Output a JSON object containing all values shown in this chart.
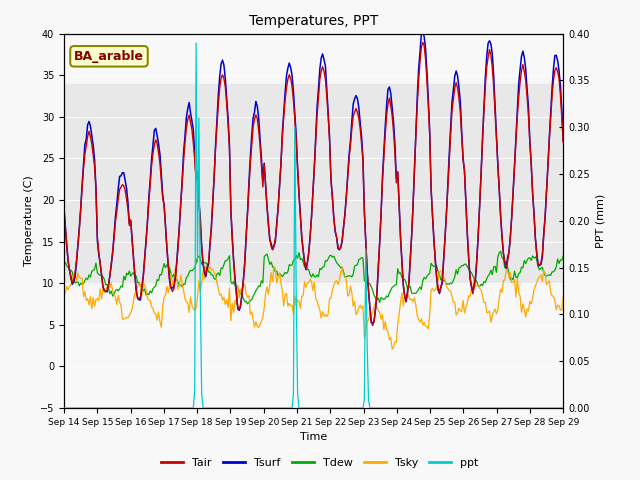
{
  "title": "Temperatures, PPT",
  "xlabel": "Time",
  "ylabel_left": "Temperature (C)",
  "ylabel_right": "PPT (mm)",
  "ylim_left": [
    -5,
    40
  ],
  "ylim_right": [
    0.0,
    0.4
  ],
  "yticks_left": [
    -5,
    0,
    5,
    10,
    15,
    20,
    25,
    30,
    35,
    40
  ],
  "yticks_right": [
    0.0,
    0.05,
    0.1,
    0.15,
    0.2,
    0.25,
    0.3,
    0.35,
    0.4
  ],
  "xtick_labels": [
    "Sep 14",
    "Sep 15",
    "Sep 16",
    "Sep 17",
    "Sep 18",
    "Sep 19",
    "Sep 20",
    "Sep 21",
    "Sep 22",
    "Sep 23",
    "Sep 24",
    "Sep 25",
    "Sep 26",
    "Sep 27",
    "Sep 28",
    "Sep 29"
  ],
  "legend_labels": [
    "Tair",
    "Tsurf",
    "Tdew",
    "Tsky",
    "ppt"
  ],
  "legend_colors": [
    "#cc0000",
    "#0000cc",
    "#00aa00",
    "#ffaa00",
    "#00cccc"
  ],
  "annotation_text": "BA_arable",
  "annotation_fg": "#880000",
  "annotation_bg": "#ffffcc",
  "annotation_border": "#888800",
  "bg_band_ylo": 10,
  "bg_band_yhi": 34,
  "bg_band_color": "#e8e8e8",
  "bg_color": "#f8f8f8",
  "line_colors": {
    "Tair": "#cc0000",
    "Tsurf": "#0000cc",
    "Tdew": "#00aa00",
    "Tsky": "#ffaa00",
    "ppt": "#00cccc"
  },
  "n_days": 15,
  "hpd": 24,
  "daily_max": [
    28,
    22,
    27,
    30,
    35,
    30,
    35,
    36,
    31,
    32,
    39,
    34,
    38,
    36,
    36
  ],
  "daily_min": [
    10,
    9,
    8,
    9,
    11,
    7,
    14,
    12,
    14,
    5,
    8,
    9,
    9,
    12,
    12
  ],
  "tdew_mean": [
    11,
    10,
    10,
    11,
    12,
    9,
    12,
    12,
    12,
    9,
    10,
    11,
    11,
    12,
    12
  ],
  "tsky_mean": [
    9,
    8,
    8,
    9,
    10,
    7,
    9,
    8,
    9,
    5,
    7,
    9,
    8,
    9,
    9
  ],
  "ppt_spikes": [
    {
      "day": 3,
      "hour": 23,
      "val": 0.39
    },
    {
      "day": 4,
      "hour": 1,
      "val": 0.31
    },
    {
      "day": 6,
      "hour": 22,
      "val": 0.3
    },
    {
      "day": 9,
      "hour": 1,
      "val": 0.17
    }
  ]
}
